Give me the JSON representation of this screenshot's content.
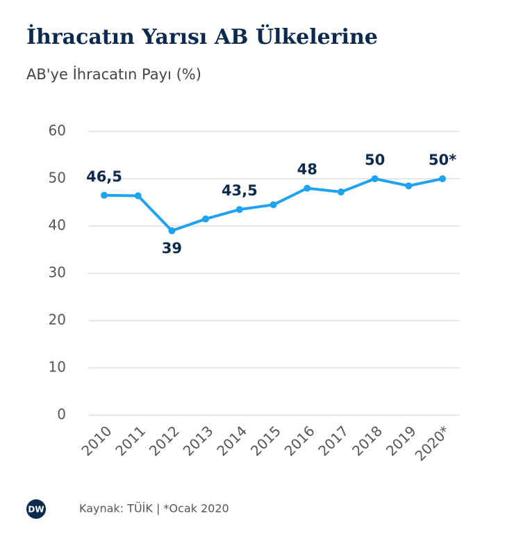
{
  "chart_data": {
    "type": "line",
    "title": "İhracatın Yarısı AB Ülkelerine",
    "subtitle": "AB'ye İhracatın Payı (%)",
    "categories": [
      "2010",
      "2011",
      "2012",
      "2013",
      "2014",
      "2015",
      "2016",
      "2017",
      "2018",
      "2019",
      "2020*"
    ],
    "values": [
      46.5,
      46.4,
      39,
      41.5,
      43.5,
      44.5,
      48,
      47.2,
      50,
      48.5,
      50
    ],
    "value_labels": [
      "46,5",
      null,
      "39",
      null,
      "43,5",
      null,
      "48",
      null,
      "50",
      null,
      "50*"
    ],
    "color": "#1ea3f0",
    "ylim": [
      0,
      60
    ],
    "yticks": [
      0,
      10,
      20,
      30,
      40,
      50,
      60
    ],
    "grid": true,
    "logo": "DW",
    "source": "Kaynak: TÜİK | *Ocak 2020"
  }
}
